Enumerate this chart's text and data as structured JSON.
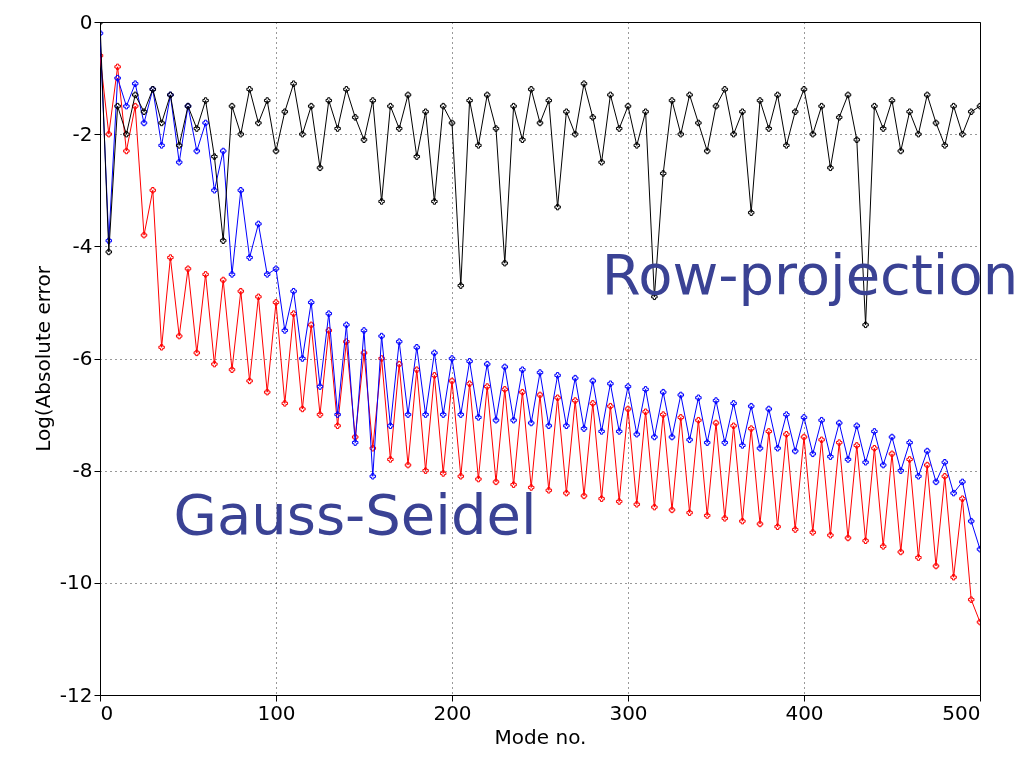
{
  "chart_data": {
    "type": "line",
    "xlabel": "Mode no.",
    "ylabel": "Log(Absolute error",
    "xlim": [
      0,
      500
    ],
    "xticks": [
      0,
      100,
      200,
      300,
      400,
      500
    ],
    "ylim": [
      -12,
      0
    ],
    "yticks": [
      -12,
      -10,
      -8,
      -6,
      -4,
      -2,
      0
    ],
    "grid": true,
    "marker": "cross",
    "line_style": "solid",
    "x": [
      0,
      5,
      10,
      15,
      20,
      25,
      30,
      35,
      40,
      45,
      50,
      55,
      60,
      65,
      70,
      75,
      80,
      85,
      90,
      95,
      100,
      105,
      110,
      115,
      120,
      125,
      130,
      135,
      140,
      145,
      150,
      155,
      160,
      165,
      170,
      175,
      180,
      185,
      190,
      195,
      200,
      205,
      210,
      215,
      220,
      225,
      230,
      235,
      240,
      245,
      250,
      255,
      260,
      265,
      270,
      275,
      280,
      285,
      290,
      295,
      300,
      305,
      310,
      315,
      320,
      325,
      330,
      335,
      340,
      345,
      350,
      355,
      360,
      365,
      370,
      375,
      380,
      385,
      390,
      395,
      400,
      405,
      410,
      415,
      420,
      425,
      430,
      435,
      440,
      445,
      450,
      455,
      460,
      465,
      470,
      475,
      480,
      485,
      490,
      495,
      500
    ],
    "annotations": [
      "Row-projection",
      "Gauss-Seidel"
    ],
    "series": [
      {
        "color": "#ff0000",
        "values": [
          -0.6,
          -2.0,
          -0.8,
          -2.3,
          -1.5,
          -3.8,
          -3.0,
          -5.8,
          -4.2,
          -5.6,
          -4.4,
          -5.9,
          -4.5,
          -6.1,
          -4.6,
          -6.2,
          -4.8,
          -6.4,
          -4.9,
          -6.6,
          -5.0,
          -6.8,
          -5.2,
          -6.9,
          -5.4,
          -7.0,
          -5.5,
          -7.2,
          -5.7,
          -7.4,
          -5.9,
          -7.6,
          -6.0,
          -7.8,
          -6.1,
          -7.9,
          -6.2,
          -8.0,
          -6.3,
          -8.05,
          -6.4,
          -8.1,
          -6.45,
          -8.15,
          -6.5,
          -8.2,
          -6.55,
          -8.25,
          -6.6,
          -8.3,
          -6.65,
          -8.35,
          -6.7,
          -8.4,
          -6.75,
          -8.45,
          -6.8,
          -8.5,
          -6.85,
          -8.55,
          -6.9,
          -8.6,
          -6.95,
          -8.65,
          -7.0,
          -8.7,
          -7.05,
          -8.75,
          -7.1,
          -8.8,
          -7.15,
          -8.85,
          -7.2,
          -8.9,
          -7.25,
          -8.95,
          -7.3,
          -9.0,
          -7.35,
          -9.05,
          -7.4,
          -9.1,
          -7.45,
          -9.15,
          -7.5,
          -9.2,
          -7.55,
          -9.25,
          -7.6,
          -9.35,
          -7.7,
          -9.45,
          -7.8,
          -9.55,
          -7.9,
          -9.7,
          -8.1,
          -9.9,
          -8.5,
          -10.3,
          -10.7
        ]
      },
      {
        "color": "#0000ff",
        "values": [
          -0.2,
          -3.9,
          -1.0,
          -1.5,
          -1.1,
          -1.8,
          -1.2,
          -2.2,
          -1.3,
          -2.5,
          -1.5,
          -2.3,
          -1.8,
          -3.0,
          -2.3,
          -4.5,
          -3.0,
          -4.2,
          -3.6,
          -4.5,
          -4.4,
          -5.5,
          -4.8,
          -6.0,
          -5.0,
          -6.5,
          -5.2,
          -7.0,
          -5.4,
          -7.5,
          -5.5,
          -8.1,
          -5.6,
          -7.2,
          -5.7,
          -7.0,
          -5.8,
          -7.0,
          -5.9,
          -7.0,
          -6.0,
          -7.0,
          -6.05,
          -7.05,
          -6.1,
          -7.1,
          -6.15,
          -7.1,
          -6.2,
          -7.15,
          -6.25,
          -7.2,
          -6.3,
          -7.2,
          -6.35,
          -7.25,
          -6.4,
          -7.3,
          -6.45,
          -7.3,
          -6.5,
          -7.35,
          -6.55,
          -7.4,
          -6.6,
          -7.4,
          -6.65,
          -7.45,
          -6.7,
          -7.5,
          -6.75,
          -7.5,
          -6.8,
          -7.55,
          -6.85,
          -7.6,
          -6.9,
          -7.6,
          -7.0,
          -7.65,
          -7.05,
          -7.7,
          -7.1,
          -7.75,
          -7.15,
          -7.8,
          -7.2,
          -7.85,
          -7.3,
          -7.9,
          -7.4,
          -8.0,
          -7.5,
          -8.1,
          -7.65,
          -8.2,
          -7.85,
          -8.4,
          -8.2,
          -8.9,
          -9.4
        ]
      },
      {
        "color": "#000000",
        "values": [
          0,
          -4.1,
          -1.5,
          -2.0,
          -1.3,
          -1.6,
          -1.2,
          -1.8,
          -1.3,
          -2.2,
          -1.5,
          -1.9,
          -1.4,
          -2.4,
          -3.9,
          -1.5,
          -2.0,
          -1.2,
          -1.8,
          -1.4,
          -2.3,
          -1.6,
          -1.1,
          -2.0,
          -1.5,
          -2.6,
          -1.4,
          -1.9,
          -1.2,
          -1.7,
          -2.1,
          -1.4,
          -3.2,
          -1.5,
          -1.9,
          -1.3,
          -2.4,
          -1.6,
          -3.2,
          -1.5,
          -1.8,
          -4.7,
          -1.4,
          -2.2,
          -1.3,
          -1.9,
          -4.3,
          -1.5,
          -2.1,
          -1.2,
          -1.8,
          -1.4,
          -3.3,
          -1.6,
          -2.0,
          -1.1,
          -1.7,
          -2.5,
          -1.3,
          -1.9,
          -1.5,
          -2.2,
          -1.6,
          -4.9,
          -2.7,
          -1.4,
          -2.0,
          -1.3,
          -1.8,
          -2.3,
          -1.5,
          -1.2,
          -2.0,
          -1.6,
          -3.4,
          -1.4,
          -1.9,
          -1.3,
          -2.2,
          -1.6,
          -1.2,
          -2.0,
          -1.5,
          -2.6,
          -1.7,
          -1.3,
          -2.1,
          -5.4,
          -1.5,
          -1.9,
          -1.4,
          -2.3,
          -1.6,
          -2.0,
          -1.3,
          -1.8,
          -2.2,
          -1.5,
          -2.0,
          -1.6,
          -1.5
        ]
      }
    ]
  }
}
